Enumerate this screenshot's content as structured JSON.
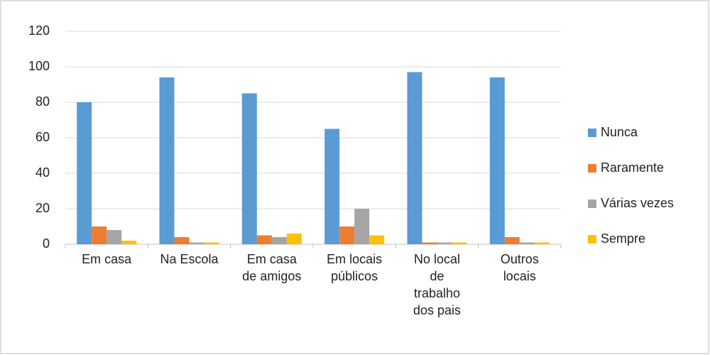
{
  "chart_data": {
    "type": "bar",
    "categories": [
      "Em casa",
      "Na Escola",
      "Em casa\nde amigos",
      "Em locais\npúblicos",
      "No local\nde\ntrabalho\ndos pais",
      "Outros\nlocais"
    ],
    "series": [
      {
        "name": "Nunca",
        "color": "#5b9bd5",
        "values": [
          80,
          94,
          85,
          65,
          97,
          94
        ]
      },
      {
        "name": "Raramente",
        "color": "#ed7d31",
        "values": [
          10,
          4,
          5,
          10,
          1,
          4
        ]
      },
      {
        "name": "Várias vezes",
        "color": "#a5a5a5",
        "values": [
          8,
          1,
          4,
          20,
          1,
          1
        ]
      },
      {
        "name": "Sempre",
        "color": "#ffc000",
        "values": [
          2,
          1,
          6,
          5,
          1,
          1
        ]
      }
    ],
    "ylim": [
      0,
      120
    ],
    "yticks": [
      0,
      20,
      40,
      60,
      80,
      100,
      120
    ],
    "grid": true,
    "legend": "right"
  }
}
